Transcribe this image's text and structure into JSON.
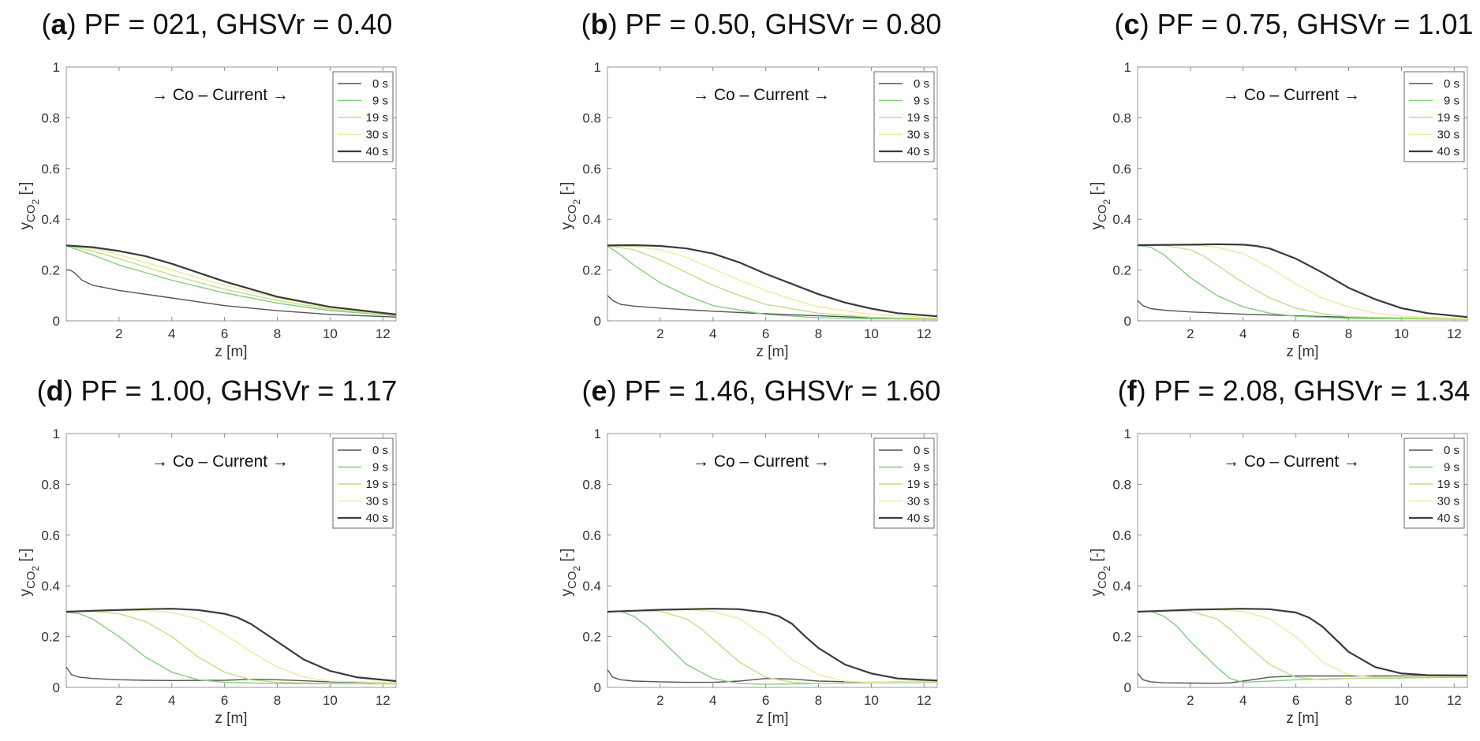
{
  "chart_data": [
    {
      "type": "line",
      "panel_label": "a",
      "title": "PF = 021, GHSVr = 0.40",
      "annotation": "→ Co – Current →",
      "xlabel": "z [m]",
      "ylabel": "y",
      "ylabel_sub": "CO",
      "ylabel_subsub": "2",
      "ylabel_suffix": " [-]",
      "xlim": [
        0,
        12.5
      ],
      "ylim": [
        0,
        1
      ],
      "xticks": [
        2,
        4,
        6,
        8,
        10,
        12
      ],
      "yticks": [
        0,
        0.2,
        0.4,
        0.6,
        0.8,
        1
      ],
      "legend_position": "top-right",
      "series": [
        {
          "name": "0 s",
          "color": "#555555",
          "x": [
            0,
            0.15,
            0.3,
            0.6,
            1,
            2,
            4,
            6,
            8,
            10,
            12.5
          ],
          "y": [
            0.2,
            0.2,
            0.19,
            0.16,
            0.14,
            0.12,
            0.09,
            0.06,
            0.04,
            0.025,
            0.015
          ]
        },
        {
          "name": "9 s",
          "color": "#7fd07a",
          "x": [
            0,
            1,
            2,
            4,
            6,
            8,
            10,
            12.5
          ],
          "y": [
            0.295,
            0.26,
            0.22,
            0.16,
            0.11,
            0.07,
            0.04,
            0.02
          ]
        },
        {
          "name": "19 s",
          "color": "#c2df88",
          "x": [
            0,
            1,
            2,
            4,
            6,
            8,
            10,
            12.5
          ],
          "y": [
            0.296,
            0.275,
            0.245,
            0.18,
            0.125,
            0.08,
            0.045,
            0.022
          ]
        },
        {
          "name": "30 s",
          "color": "#ede9a0",
          "x": [
            0,
            1,
            2,
            4,
            6,
            8,
            10,
            12.5
          ],
          "y": [
            0.297,
            0.285,
            0.26,
            0.2,
            0.14,
            0.09,
            0.05,
            0.024
          ]
        },
        {
          "name": "40 s",
          "color": "#3a3a3a",
          "x": [
            0,
            1,
            2,
            3,
            4,
            6,
            8,
            10,
            12.5
          ],
          "y": [
            0.297,
            0.29,
            0.275,
            0.255,
            0.225,
            0.155,
            0.095,
            0.055,
            0.025
          ]
        }
      ]
    },
    {
      "type": "line",
      "panel_label": "b",
      "title": "PF = 0.50, GHSVr = 0.80",
      "annotation": "→ Co – Current →",
      "xlabel": "z [m]",
      "ylabel": "y",
      "ylabel_sub": "CO",
      "ylabel_subsub": "2",
      "ylabel_suffix": " [-]",
      "xlim": [
        0,
        12.5
      ],
      "ylim": [
        0,
        1
      ],
      "xticks": [
        2,
        4,
        6,
        8,
        10,
        12
      ],
      "yticks": [
        0,
        0.2,
        0.4,
        0.6,
        0.8,
        1
      ],
      "legend_position": "top-right",
      "series": [
        {
          "name": "0 s",
          "color": "#555555",
          "x": [
            0,
            0.2,
            0.5,
            1,
            2,
            4,
            6,
            8,
            10,
            12.5
          ],
          "y": [
            0.1,
            0.08,
            0.065,
            0.058,
            0.05,
            0.038,
            0.028,
            0.02,
            0.012,
            0.008
          ]
        },
        {
          "name": "9 s",
          "color": "#7fd07a",
          "x": [
            0,
            0.5,
            1,
            2,
            3,
            4,
            6,
            8,
            10,
            12.5
          ],
          "y": [
            0.295,
            0.26,
            0.22,
            0.15,
            0.1,
            0.06,
            0.025,
            0.012,
            0.008,
            0.006
          ]
        },
        {
          "name": "19 s",
          "color": "#c2df88",
          "x": [
            0,
            1,
            2,
            3,
            4,
            5,
            6,
            8,
            10,
            12.5
          ],
          "y": [
            0.296,
            0.28,
            0.24,
            0.19,
            0.14,
            0.1,
            0.065,
            0.03,
            0.014,
            0.008
          ]
        },
        {
          "name": "30 s",
          "color": "#ede9a0",
          "x": [
            0,
            1,
            2,
            3,
            4,
            5,
            6,
            7,
            8,
            10,
            12.5
          ],
          "y": [
            0.297,
            0.293,
            0.28,
            0.25,
            0.205,
            0.16,
            0.12,
            0.085,
            0.055,
            0.025,
            0.012
          ]
        },
        {
          "name": "40 s",
          "color": "#3a3a3a",
          "x": [
            0,
            1,
            2,
            3,
            4,
            5,
            6,
            7,
            8,
            9,
            10,
            11,
            12.5
          ],
          "y": [
            0.297,
            0.298,
            0.295,
            0.285,
            0.265,
            0.23,
            0.185,
            0.145,
            0.105,
            0.072,
            0.048,
            0.03,
            0.018
          ]
        }
      ]
    },
    {
      "type": "line",
      "panel_label": "c",
      "title": "PF = 0.75, GHSVr = 1.01",
      "annotation": "→ Co – Current →",
      "xlabel": "z [m]",
      "ylabel": "y",
      "ylabel_sub": "CO",
      "ylabel_subsub": "2",
      "ylabel_suffix": " [-]",
      "xlim": [
        0,
        12.5
      ],
      "ylim": [
        0,
        1
      ],
      "xticks": [
        2,
        4,
        6,
        8,
        10,
        12
      ],
      "yticks": [
        0,
        0.2,
        0.4,
        0.6,
        0.8,
        1
      ],
      "legend_position": "top-right",
      "series": [
        {
          "name": "0 s",
          "color": "#555555",
          "x": [
            0,
            0.2,
            0.5,
            1,
            2,
            4,
            6,
            8,
            10,
            12.5
          ],
          "y": [
            0.08,
            0.06,
            0.048,
            0.042,
            0.035,
            0.026,
            0.02,
            0.014,
            0.01,
            0.008
          ]
        },
        {
          "name": "9 s",
          "color": "#7fd07a",
          "x": [
            0,
            0.5,
            1,
            1.5,
            2,
            3,
            4,
            5,
            6,
            8,
            12.5
          ],
          "y": [
            0.297,
            0.29,
            0.26,
            0.215,
            0.17,
            0.1,
            0.055,
            0.03,
            0.018,
            0.01,
            0.006
          ]
        },
        {
          "name": "19 s",
          "color": "#c2df88",
          "x": [
            0,
            1,
            2,
            2.5,
            3,
            4,
            5,
            6,
            7,
            8,
            12.5
          ],
          "y": [
            0.298,
            0.297,
            0.28,
            0.255,
            0.22,
            0.15,
            0.09,
            0.05,
            0.028,
            0.016,
            0.007
          ]
        },
        {
          "name": "30 s",
          "color": "#ede9a0",
          "x": [
            0,
            2,
            3,
            4,
            5,
            6,
            7,
            8,
            9,
            10,
            12.5
          ],
          "y": [
            0.298,
            0.299,
            0.29,
            0.265,
            0.21,
            0.145,
            0.09,
            0.055,
            0.03,
            0.018,
            0.009
          ]
        },
        {
          "name": "40 s",
          "color": "#3a3a3a",
          "x": [
            0,
            2,
            3,
            4,
            4.5,
            5,
            6,
            7,
            8,
            9,
            10,
            11,
            12.5
          ],
          "y": [
            0.298,
            0.3,
            0.302,
            0.3,
            0.295,
            0.285,
            0.245,
            0.19,
            0.13,
            0.085,
            0.05,
            0.03,
            0.015
          ]
        }
      ]
    },
    {
      "type": "line",
      "panel_label": "d",
      "title": "PF = 1.00, GHSVr = 1.17",
      "annotation": "→ Co – Current →",
      "xlabel": "z [m]",
      "ylabel": "y",
      "ylabel_sub": "CO",
      "ylabel_subsub": "2",
      "ylabel_suffix": " [-]",
      "xlim": [
        0,
        12.5
      ],
      "ylim": [
        0,
        1
      ],
      "xticks": [
        2,
        4,
        6,
        8,
        10,
        12
      ],
      "yticks": [
        0,
        0.2,
        0.4,
        0.6,
        0.8,
        1
      ],
      "legend_position": "top-right",
      "series": [
        {
          "name": "0 s",
          "color": "#555555",
          "x": [
            0,
            0.2,
            0.5,
            1,
            2,
            3,
            4,
            6,
            7,
            8,
            10,
            12.5
          ],
          "y": [
            0.08,
            0.05,
            0.04,
            0.035,
            0.03,
            0.028,
            0.027,
            0.028,
            0.032,
            0.03,
            0.022,
            0.018
          ]
        },
        {
          "name": "9 s",
          "color": "#7fd07a",
          "x": [
            0,
            0.5,
            1,
            2,
            3,
            4,
            5,
            6,
            8,
            12.5
          ],
          "y": [
            0.296,
            0.29,
            0.27,
            0.2,
            0.12,
            0.06,
            0.03,
            0.02,
            0.015,
            0.014
          ]
        },
        {
          "name": "19 s",
          "color": "#c2df88",
          "x": [
            0,
            1,
            2,
            3,
            4,
            5,
            6,
            7,
            8,
            10,
            12.5
          ],
          "y": [
            0.297,
            0.299,
            0.29,
            0.26,
            0.2,
            0.12,
            0.06,
            0.03,
            0.02,
            0.016,
            0.015
          ]
        },
        {
          "name": "30 s",
          "color": "#ede9a0",
          "x": [
            0,
            2,
            3,
            4,
            5,
            6,
            7,
            8,
            9,
            10,
            12.5
          ],
          "y": [
            0.298,
            0.302,
            0.303,
            0.295,
            0.27,
            0.21,
            0.14,
            0.08,
            0.04,
            0.025,
            0.018
          ]
        },
        {
          "name": "40 s",
          "color": "#3a3a3a",
          "x": [
            0,
            1,
            2,
            3,
            4,
            5,
            6,
            6.5,
            7,
            8,
            9,
            10,
            11,
            12.5
          ],
          "y": [
            0.298,
            0.302,
            0.305,
            0.308,
            0.31,
            0.305,
            0.29,
            0.275,
            0.25,
            0.18,
            0.11,
            0.065,
            0.04,
            0.025
          ]
        }
      ]
    },
    {
      "type": "line",
      "panel_label": "e",
      "title": "PF = 1.46, GHSVr = 1.60",
      "annotation": "→ Co – Current →",
      "xlabel": "z [m]",
      "ylabel": "y",
      "ylabel_sub": "CO",
      "ylabel_subsub": "2",
      "ylabel_suffix": " [-]",
      "xlim": [
        0,
        12.5
      ],
      "ylim": [
        0,
        1
      ],
      "xticks": [
        2,
        4,
        6,
        8,
        10,
        12
      ],
      "yticks": [
        0,
        0.2,
        0.4,
        0.6,
        0.8,
        1
      ],
      "legend_position": "top-right",
      "series": [
        {
          "name": "0 s",
          "color": "#555555",
          "x": [
            0,
            0.2,
            0.5,
            1,
            2,
            3,
            4,
            5,
            6,
            7,
            8,
            10,
            12.5
          ],
          "y": [
            0.07,
            0.04,
            0.03,
            0.025,
            0.022,
            0.02,
            0.02,
            0.025,
            0.035,
            0.033,
            0.025,
            0.02,
            0.025
          ]
        },
        {
          "name": "9 s",
          "color": "#7fd07a",
          "x": [
            0,
            0.5,
            1,
            1.5,
            2,
            3,
            4,
            5,
            6,
            8,
            12.5
          ],
          "y": [
            0.298,
            0.3,
            0.28,
            0.24,
            0.19,
            0.09,
            0.035,
            0.015,
            0.012,
            0.015,
            0.02
          ]
        },
        {
          "name": "19 s",
          "color": "#c2df88",
          "x": [
            0,
            1,
            2,
            3,
            3.5,
            4,
            5,
            6,
            7,
            8,
            10,
            12.5
          ],
          "y": [
            0.298,
            0.302,
            0.3,
            0.27,
            0.235,
            0.19,
            0.1,
            0.04,
            0.02,
            0.015,
            0.018,
            0.022
          ]
        },
        {
          "name": "30 s",
          "color": "#ede9a0",
          "x": [
            0,
            2,
            3,
            4,
            5,
            6,
            7,
            8,
            9,
            10,
            12.5
          ],
          "y": [
            0.298,
            0.305,
            0.306,
            0.3,
            0.27,
            0.2,
            0.11,
            0.05,
            0.025,
            0.02,
            0.025
          ]
        },
        {
          "name": "40 s",
          "color": "#3a3a3a",
          "x": [
            0,
            1,
            2,
            3,
            4,
            5,
            6,
            6.5,
            7,
            7.5,
            8,
            9,
            10,
            11,
            12.5
          ],
          "y": [
            0.298,
            0.302,
            0.306,
            0.308,
            0.31,
            0.308,
            0.295,
            0.28,
            0.25,
            0.2,
            0.155,
            0.09,
            0.055,
            0.035,
            0.027
          ]
        }
      ]
    },
    {
      "type": "line",
      "panel_label": "f",
      "title": "PF = 2.08, GHSVr = 1.34",
      "annotation": "→ Co – Current →",
      "xlabel": "z [m]",
      "ylabel": "y",
      "ylabel_sub": "CO",
      "ylabel_subsub": "2",
      "ylabel_suffix": " [-]",
      "xlim": [
        0,
        12.5
      ],
      "ylim": [
        0,
        1
      ],
      "xticks": [
        2,
        4,
        6,
        8,
        10,
        12
      ],
      "yticks": [
        0,
        0.2,
        0.4,
        0.6,
        0.8,
        1
      ],
      "legend_position": "top-right",
      "series": [
        {
          "name": "0 s",
          "color": "#555555",
          "x": [
            0,
            0.2,
            0.5,
            1,
            2,
            3,
            3.5,
            4,
            5,
            6,
            8,
            10,
            12.5
          ],
          "y": [
            0.055,
            0.03,
            0.022,
            0.018,
            0.017,
            0.016,
            0.018,
            0.025,
            0.04,
            0.045,
            0.045,
            0.045,
            0.045
          ]
        },
        {
          "name": "9 s",
          "color": "#7fd07a",
          "x": [
            0,
            0.5,
            1,
            1.5,
            2,
            3,
            3.5,
            4,
            5,
            6,
            8,
            12.5
          ],
          "y": [
            0.298,
            0.3,
            0.28,
            0.24,
            0.18,
            0.08,
            0.035,
            0.02,
            0.025,
            0.03,
            0.035,
            0.04
          ]
        },
        {
          "name": "19 s",
          "color": "#c2df88",
          "x": [
            0,
            1,
            2,
            3,
            3.5,
            4,
            5,
            6,
            7,
            8,
            10,
            12.5
          ],
          "y": [
            0.298,
            0.302,
            0.3,
            0.27,
            0.23,
            0.18,
            0.09,
            0.04,
            0.03,
            0.035,
            0.04,
            0.042
          ]
        },
        {
          "name": "30 s",
          "color": "#ede9a0",
          "x": [
            0,
            2,
            3,
            4,
            5,
            6,
            7,
            8,
            9,
            10,
            12.5
          ],
          "y": [
            0.298,
            0.305,
            0.306,
            0.3,
            0.27,
            0.2,
            0.1,
            0.05,
            0.04,
            0.042,
            0.045
          ]
        },
        {
          "name": "40 s",
          "color": "#3a3a3a",
          "x": [
            0,
            1,
            2,
            3,
            4,
            5,
            6,
            6.5,
            7,
            7.5,
            8,
            9,
            10,
            11,
            12.5
          ],
          "y": [
            0.298,
            0.302,
            0.306,
            0.308,
            0.31,
            0.308,
            0.295,
            0.275,
            0.24,
            0.19,
            0.14,
            0.08,
            0.055,
            0.048,
            0.047
          ]
        }
      ]
    }
  ]
}
